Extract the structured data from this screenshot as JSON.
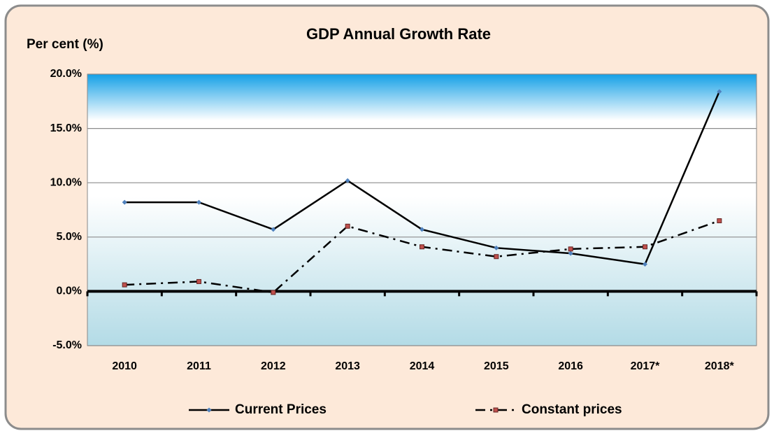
{
  "chart_data": {
    "type": "line",
    "title": "GDP Annual Growth Rate",
    "y_label": "Per cent (%)",
    "categories": [
      "2010",
      "2011",
      "2012",
      "2013",
      "2014",
      "2015",
      "2016",
      "2017*",
      "2018*"
    ],
    "series": [
      {
        "name": "Current Prices",
        "color": "#000000",
        "marker_color": "#4f81bd",
        "values": [
          8.2,
          8.2,
          5.7,
          10.2,
          5.7,
          4.0,
          3.5,
          2.5,
          18.4
        ]
      },
      {
        "name": "Constant prices",
        "color": "#000000",
        "marker_color": "#c0504d",
        "values": [
          0.6,
          0.9,
          -0.1,
          6.0,
          4.1,
          3.2,
          3.9,
          4.1,
          6.5
        ]
      }
    ],
    "ylim": [
      -5,
      20
    ],
    "yticks": [
      {
        "value": -5,
        "label": "-5.0%"
      },
      {
        "value": 0,
        "label": "0.0%"
      },
      {
        "value": 5,
        "label": "5.0%"
      },
      {
        "value": 10,
        "label": "10.0%"
      },
      {
        "value": 15,
        "label": "15.0%"
      },
      {
        "value": 20,
        "label": "20.0%"
      }
    ],
    "grid": true,
    "legend": "bottom"
  }
}
